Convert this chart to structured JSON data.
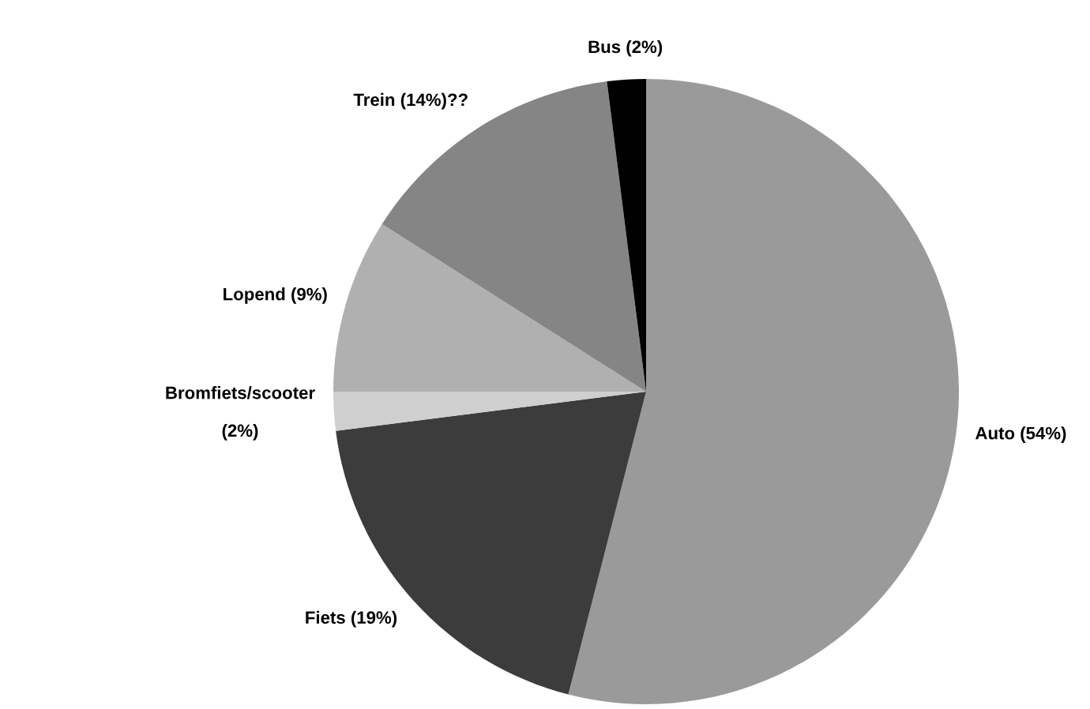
{
  "chart_data": {
    "type": "pie",
    "categories": [
      "Auto (54%)",
      "Fiets (19%)",
      "Bromfiets/scooter\n\n(2%)",
      "Lopend (9%)",
      "Trein (14%)??",
      "Bus (2%)"
    ],
    "values": [
      54,
      19,
      2,
      9,
      14,
      2
    ],
    "colors": [
      "#9a9a9a",
      "#3c3c3c",
      "#cfcfcf",
      "#b0b0b0",
      "#858585",
      "#000000"
    ],
    "legend": false
  }
}
